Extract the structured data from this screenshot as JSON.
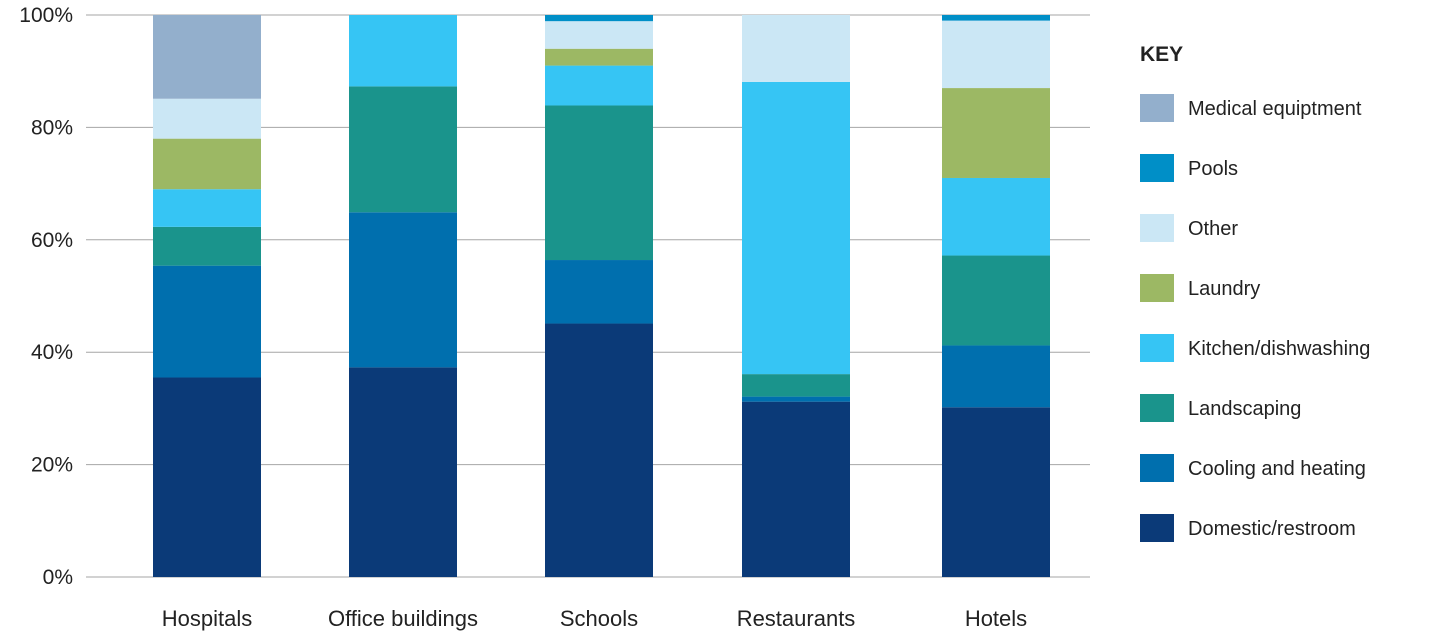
{
  "chart_data": {
    "type": "bar",
    "stacked": true,
    "categories": [
      "Hospitals",
      "Office buildings",
      "Schools",
      "Restaurants",
      "Hotels"
    ],
    "ylim": [
      0,
      100
    ],
    "yticks": [
      "0%",
      "20%",
      "40%",
      "60%",
      "80%",
      "100%"
    ],
    "ytick_values": [
      0,
      20,
      40,
      60,
      80,
      100
    ],
    "grid": true,
    "legend": {
      "title": "KEY",
      "position": "right"
    },
    "series": [
      {
        "name": "Domestic/restroom",
        "color": "#0b3a78",
        "values": [
          35.5,
          37.3,
          45.1,
          31.2,
          30.2
        ]
      },
      {
        "name": "Cooling and heating",
        "color": "#006fae",
        "values": [
          19.9,
          27.6,
          11.3,
          0.9,
          11.0
        ]
      },
      {
        "name": "Landscaping",
        "color": "#1a948c",
        "values": [
          6.9,
          22.4,
          27.5,
          4.0,
          16.0
        ]
      },
      {
        "name": "Kitchen/dishwashing",
        "color": "#36c5f4",
        "values": [
          6.7,
          12.7,
          7.1,
          52.0,
          13.8
        ]
      },
      {
        "name": "Laundry",
        "color": "#9cb864",
        "values": [
          9.0,
          0,
          3.0,
          0,
          16.0
        ]
      },
      {
        "name": "Other",
        "color": "#cbe7f5",
        "values": [
          7.1,
          0,
          4.9,
          11.9,
          12.0
        ]
      },
      {
        "name": "Pools",
        "color": "#008fc7",
        "values": [
          0,
          0,
          1.1,
          0,
          1.0
        ]
      },
      {
        "name": "Medical equiptment",
        "color": "#93afcc",
        "values": [
          14.9,
          0,
          0,
          0,
          0
        ]
      }
    ]
  }
}
